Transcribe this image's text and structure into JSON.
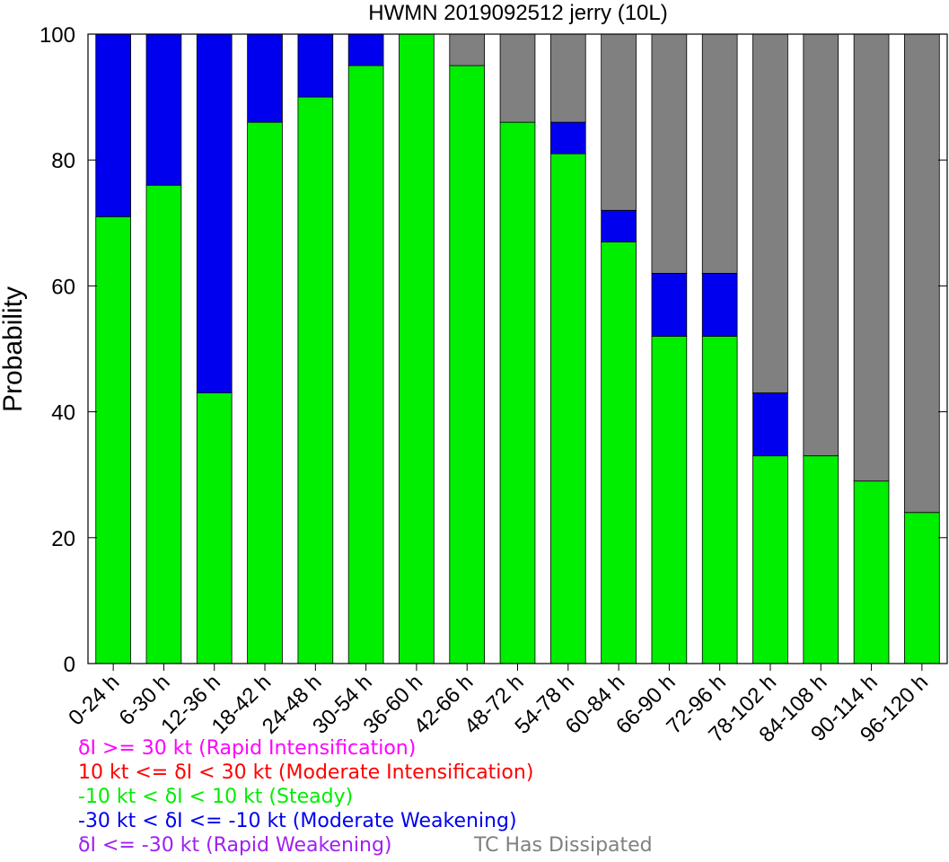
{
  "chart_data": {
    "type": "bar",
    "stacked": true,
    "title": "HWMN 2019092512 jerry (10L)",
    "xlabel": "",
    "ylabel": "Probability",
    "ylim": [
      0,
      100
    ],
    "yticks": [
      0,
      20,
      40,
      60,
      80,
      100
    ],
    "grid": false,
    "categories": [
      "0-24 h",
      "6-30 h",
      "12-36 h",
      "18-42 h",
      "24-48 h",
      "30-54 h",
      "36-60 h",
      "42-66 h",
      "48-72 h",
      "54-78 h",
      "60-84 h",
      "66-90 h",
      "72-96 h",
      "78-102 h",
      "84-108 h",
      "90-114 h",
      "96-120 h"
    ],
    "series": [
      {
        "key": "steady",
        "color": "#00ee00",
        "values": [
          71,
          76,
          43,
          86,
          90,
          95,
          100,
          95,
          86,
          81,
          67,
          52,
          52,
          33,
          33,
          29,
          24
        ]
      },
      {
        "key": "moderate_weakening",
        "color": "#0000ee",
        "values": [
          29,
          24,
          57,
          14,
          10,
          5,
          0,
          0,
          0,
          5,
          5,
          10,
          10,
          10,
          0,
          0,
          0
        ]
      },
      {
        "key": "dissipated",
        "color": "#808080",
        "values": [
          0,
          0,
          0,
          0,
          0,
          0,
          0,
          5,
          14,
          14,
          28,
          38,
          38,
          57,
          67,
          71,
          76
        ]
      }
    ]
  },
  "legend": {
    "rapid_intensification": {
      "text": "δI >= 30 kt (Rapid Intensification)",
      "color": "#ff00ff"
    },
    "moderate_intensification": {
      "text": "10 kt <= δI < 30 kt (Moderate Intensification)",
      "color": "#ff0000"
    },
    "steady": {
      "text": "-10 kt < δI < 10 kt (Steady)",
      "color": "#00ee00"
    },
    "moderate_weakening": {
      "text": "-30 kt < δI <= -10 kt (Moderate Weakening)",
      "color": "#0000ee"
    },
    "rapid_weakening": {
      "text": "δI <= -30 kt (Rapid Weakening)",
      "color": "#a020f0"
    },
    "dissipated": {
      "text": "TC Has Dissipated",
      "color": "#808080"
    }
  }
}
